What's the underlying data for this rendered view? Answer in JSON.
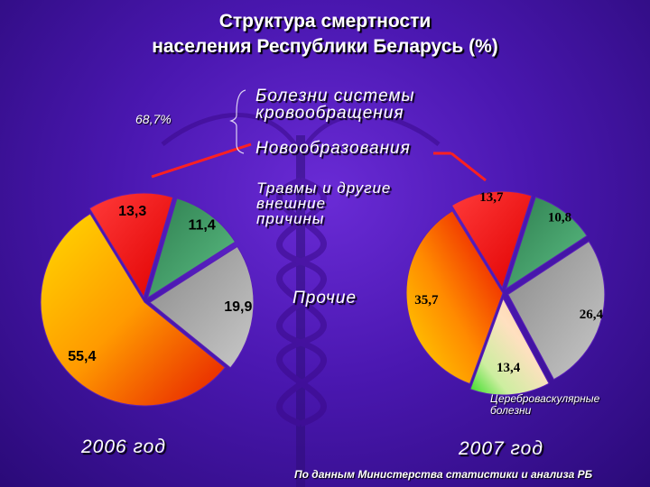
{
  "title_line1": "Структура смертности",
  "title_line2": "населения Республики Беларусь (%)",
  "percent_note": "68,7%",
  "legend": {
    "circulatory": "Болезни системы кровообращения",
    "circulatory_l1": "Болезни системы",
    "circulatory_l2": "кровообращения",
    "neoplasms": "Новообразования",
    "injuries_l1": "Травмы и другие",
    "injuries_l2": "внешние",
    "injuries_l3": "причины",
    "other": "Прочие",
    "cerebro_l1": "Цереброваскулярные",
    "cerebro_l2": "болезни"
  },
  "year_2006": "2006 год",
  "year_2007": "2007 год",
  "source": "По данным Министерства статистики и анализа РБ",
  "colors": {
    "red": "#ff1e1e",
    "green": "#3c9a64",
    "gray": "#a8a8a8",
    "peach": "#ffd9b8",
    "orange": "#ff8c00"
  },
  "chart_data": [
    {
      "type": "pie",
      "year": "2006 год",
      "slices": [
        {
          "key": "neoplasms",
          "value": 13.3,
          "label": "13,3"
        },
        {
          "key": "injuries",
          "value": 11.4,
          "label": "11,4"
        },
        {
          "key": "other",
          "value": 19.9,
          "label": "19,9"
        },
        {
          "key": "circulatory",
          "value": 55.4,
          "label": "55,4"
        }
      ]
    },
    {
      "type": "pie",
      "year": "2007 год",
      "slices": [
        {
          "key": "neoplasms",
          "value": 13.7,
          "label": "13,7"
        },
        {
          "key": "injuries",
          "value": 10.8,
          "label": "10,8"
        },
        {
          "key": "other",
          "value": 26.4,
          "label": "26,4"
        },
        {
          "key": "cerebro",
          "value": 13.4,
          "label": "13,4"
        },
        {
          "key": "circulatory",
          "value": 35.7,
          "label": "35,7"
        }
      ]
    }
  ]
}
